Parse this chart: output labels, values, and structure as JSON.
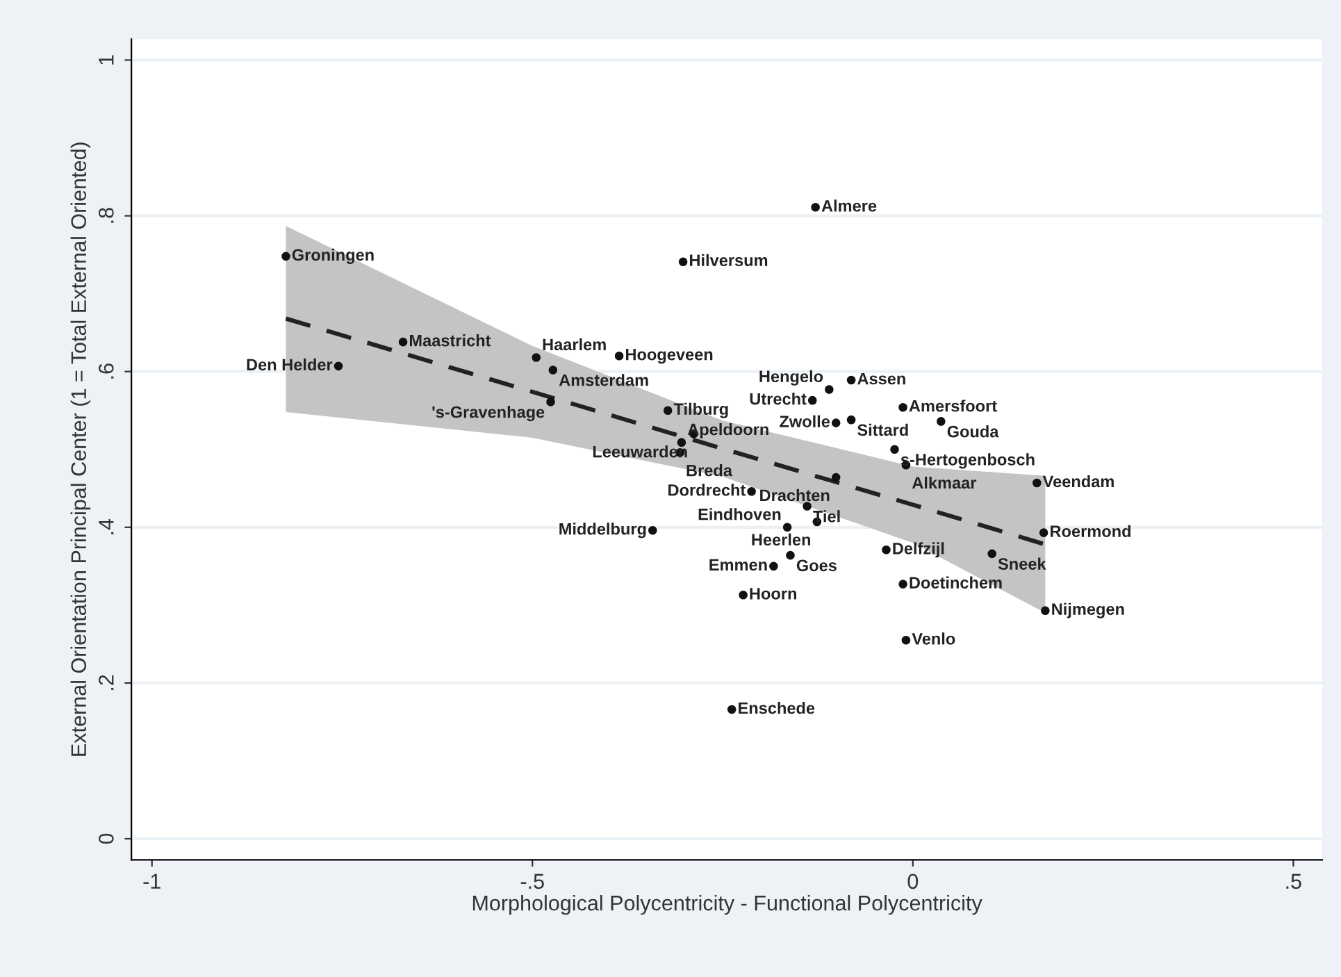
{
  "chart_data": {
    "type": "scatter",
    "xlabel": "Morphological Polycentricity - Functional Polycentricity",
    "ylabel": "External Orientation Principal Center (1 = Total External Oriented)",
    "xlim": [
      -1.027,
      0.538
    ],
    "ylim": [
      -0.027,
      1.027
    ],
    "xticks": [
      {
        "value": -1,
        "label": "-1"
      },
      {
        "value": -0.5,
        "label": "-.5"
      },
      0,
      {
        "value": 0.5,
        "label": ".5"
      }
    ],
    "yticks": [
      0,
      {
        "value": 0.2,
        "label": ".2"
      },
      {
        "value": 0.4,
        "label": ".4"
      },
      {
        "value": 0.6,
        "label": ".6"
      },
      {
        "value": 0.8,
        "label": ".8"
      },
      1
    ],
    "grid": "y",
    "series": [
      {
        "type": "line",
        "line_style": "dashed",
        "color": "#222222",
        "x": [
          -0.824,
          -0.5,
          -0.25,
          0,
          0.174
        ],
        "values": [
          0.668,
          0.574,
          0.501,
          0.429,
          0.378
        ],
        "lower": [
          0.548,
          0.515,
          0.465,
          0.38,
          0.29
        ],
        "upper": [
          0.787,
          0.633,
          0.537,
          0.478,
          0.466
        ]
      },
      {
        "color": "#111111",
        "marker": "circle",
        "x": [
          -0.824,
          -0.302,
          -0.128,
          -0.67,
          -0.755,
          -0.495,
          -0.386,
          -0.473,
          -0.476,
          -0.322,
          -0.288,
          -0.304,
          -0.306,
          -0.081,
          -0.11,
          -0.132,
          -0.013,
          -0.101,
          -0.081,
          0.037,
          -0.024,
          -0.009,
          -0.101,
          0.163,
          -0.212,
          -0.139,
          -0.126,
          -0.165,
          -0.342,
          0.172,
          -0.035,
          0.104,
          -0.161,
          -0.183,
          -0.013,
          -0.223,
          0.174,
          -0.009,
          -0.238
        ],
        "values": [
          0.748,
          0.741,
          0.811,
          0.638,
          0.607,
          0.618,
          0.62,
          0.602,
          0.561,
          0.55,
          0.52,
          0.509,
          0.496,
          0.589,
          0.577,
          0.563,
          0.554,
          0.534,
          0.538,
          0.536,
          0.5,
          0.48,
          0.464,
          0.457,
          0.446,
          0.427,
          0.407,
          0.4,
          0.396,
          0.393,
          0.371,
          0.366,
          0.364,
          0.35,
          0.327,
          0.313,
          0.293,
          0.255,
          0.166
        ],
        "value_labels": [
          "Groningen",
          "Hilversum",
          "Almere",
          "Maastricht",
          "Den Helder",
          "Haarlem",
          "Hoogeveen",
          "Amsterdam",
          "'s-Gravenhage",
          "Tilburg",
          "Leeuwarden",
          "Apeldoorn",
          "Breda",
          "Assen",
          "Hengelo",
          "Utrecht",
          "Amersfoort",
          "Zwolle",
          "Sittard",
          "Gouda",
          "s-Hertogenbosch",
          "Alkmaar",
          "Drachten",
          "Veendam",
          "Dordrecht",
          "Tiel",
          "Heerlen",
          "Eindhoven",
          "Middelburg",
          "Roermond",
          "Delfzijl",
          "Sneek",
          "Goes",
          "Emmen",
          "Doetinchem",
          "Hoorn",
          "Nijmegen",
          "Venlo",
          "Enschede"
        ]
      }
    ]
  }
}
